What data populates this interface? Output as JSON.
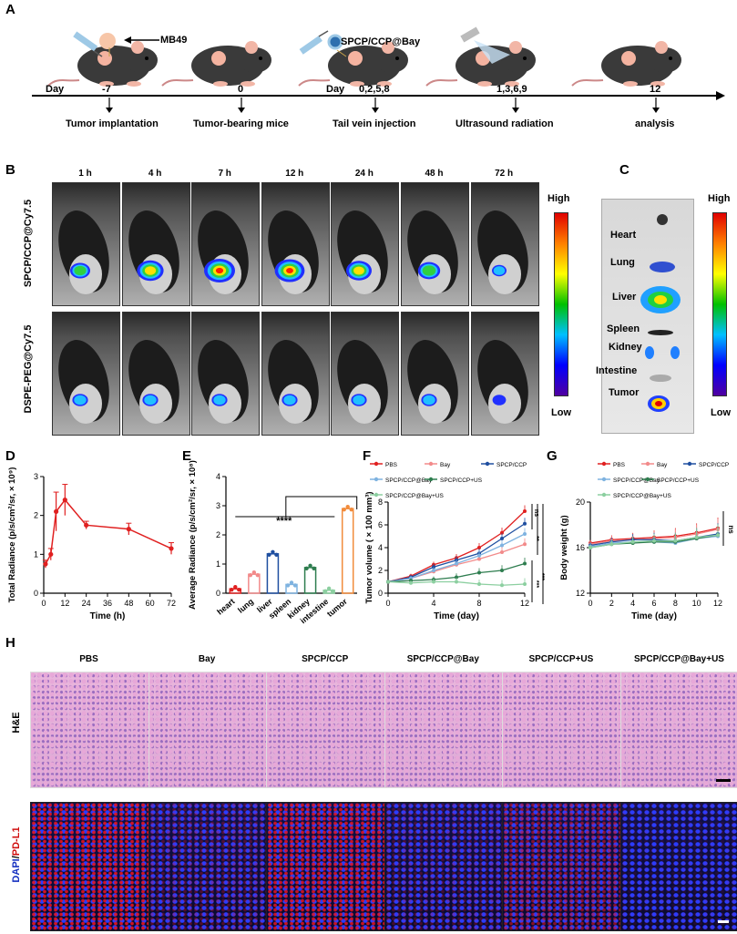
{
  "panel_labels": {
    "a": "A",
    "b": "B",
    "c": "C",
    "d": "D",
    "e": "E",
    "f": "F",
    "g": "G",
    "h": "H"
  },
  "timeline": {
    "day_word": "Day",
    "days": [
      "-7",
      "0",
      "0,2,5,8",
      "1,3,6,9",
      "12"
    ],
    "steps": [
      "Tumor implantation",
      "Tumor-bearing mice",
      "Tail vein injection",
      "Ultrasound radiation",
      "analysis"
    ],
    "annotations": [
      "MB49",
      "SPCP/CCP@Bay"
    ]
  },
  "imaging": {
    "times": [
      "1 h",
      "4 h",
      "7 h",
      "12 h",
      "24 h",
      "48 h",
      "72 h"
    ],
    "row_labels": [
      "SPCP/CCP@Cy7.5",
      "DSPE-PEG@Cy7.5"
    ],
    "scale_high": "High",
    "scale_low": "Low",
    "signal_strength_row1": [
      0.5,
      0.8,
      1.0,
      0.95,
      0.75,
      0.6,
      0.25
    ],
    "signal_strength_row2": [
      0.3,
      0.3,
      0.3,
      0.3,
      0.3,
      0.3,
      0.2
    ]
  },
  "organs": {
    "labels": [
      "Heart",
      "Lung",
      "Liver",
      "Spleen",
      "Kidney",
      "Intestine",
      "Tumor"
    ],
    "scale_high": "High",
    "scale_low": "Low"
  },
  "chart_data": [
    {
      "panel": "D",
      "type": "line",
      "xlabel": "Time (h)",
      "ylabel": "Total Radiance (p/s/cm²/sr, × 10⁹)",
      "xlim": [
        0,
        72
      ],
      "ylim": [
        0,
        3
      ],
      "xticks": [
        "0",
        "12",
        "24",
        "36",
        "48",
        "60",
        "72"
      ],
      "yticks": [
        "0",
        "1",
        "2",
        "3"
      ],
      "x": [
        1,
        4,
        7,
        12,
        24,
        48,
        72
      ],
      "y": [
        0.75,
        1.0,
        2.1,
        2.4,
        1.75,
        1.65,
        1.15
      ],
      "err": [
        0.1,
        0.15,
        0.5,
        0.4,
        0.1,
        0.15,
        0.15
      ],
      "color": "#e02020"
    },
    {
      "panel": "E",
      "type": "bar",
      "ylabel": "Average Radiance (p/s/cm²/sr, × 10⁸)",
      "ylim": [
        0,
        4
      ],
      "yticks": [
        "0",
        "1",
        "2",
        "3",
        "4"
      ],
      "categories": [
        "heart",
        "lung",
        "liver",
        "spleen",
        "kidney",
        "intestine",
        "tumor"
      ],
      "values": [
        0.15,
        0.65,
        1.35,
        0.3,
        0.88,
        0.1,
        2.9
      ],
      "colors": [
        "#e02020",
        "#f28a8a",
        "#1f4fa0",
        "#7fb3e0",
        "#2e7d4f",
        "#8ccfa0",
        "#f28c3c"
      ],
      "significance": "****"
    },
    {
      "panel": "F",
      "type": "line",
      "xlabel": "Time (day)",
      "ylabel": "Tumor volume ( × 100 mm³)",
      "xlim": [
        0,
        12
      ],
      "ylim": [
        0,
        8
      ],
      "xticks": [
        "0",
        "4",
        "8",
        "12"
      ],
      "yticks": [
        "0",
        "2",
        "4",
        "6",
        "8"
      ],
      "x": [
        0,
        2,
        4,
        6,
        8,
        10,
        12
      ],
      "series": [
        {
          "name": "PBS",
          "color": "#e02020",
          "values": [
            1.0,
            1.5,
            2.5,
            3.1,
            4.0,
            5.3,
            7.2
          ]
        },
        {
          "name": "Bay",
          "color": "#f28a8a",
          "values": [
            1.0,
            1.3,
            1.9,
            2.5,
            3.0,
            3.6,
            4.3
          ]
        },
        {
          "name": "SPCP/CCP",
          "color": "#1f4fa0",
          "values": [
            1.0,
            1.4,
            2.3,
            2.9,
            3.5,
            4.8,
            6.1
          ]
        },
        {
          "name": "SPCP/CCP@Bay",
          "color": "#7fb3e0",
          "values": [
            1.0,
            1.3,
            2.0,
            2.6,
            3.3,
            4.2,
            5.2
          ]
        },
        {
          "name": "SPCP/CCP+US",
          "color": "#2e7d4f",
          "values": [
            1.0,
            1.1,
            1.2,
            1.4,
            1.8,
            2.0,
            2.6
          ]
        },
        {
          "name": "SPCP/CCP@Bay+US",
          "color": "#8ccfa0",
          "values": [
            1.0,
            0.9,
            1.0,
            1.0,
            0.8,
            0.7,
            0.8
          ]
        }
      ],
      "significance": [
        "ns",
        "**",
        "***",
        "***"
      ]
    },
    {
      "panel": "G",
      "type": "line",
      "xlabel": "Time (day)",
      "ylabel": "Body weight (g)",
      "xlim": [
        0,
        12
      ],
      "ylim": [
        12,
        20
      ],
      "xticks": [
        "0",
        "2",
        "4",
        "6",
        "8",
        "10",
        "12"
      ],
      "yticks": [
        "12",
        "16",
        "20"
      ],
      "x": [
        0,
        2,
        4,
        6,
        8,
        10,
        12
      ],
      "series": [
        {
          "name": "PBS",
          "color": "#e02020",
          "values": [
            16.4,
            16.7,
            16.8,
            16.9,
            17.0,
            17.3,
            17.7
          ]
        },
        {
          "name": "Bay",
          "color": "#f28a8a",
          "values": [
            16.3,
            16.6,
            16.7,
            16.8,
            16.9,
            17.2,
            17.6
          ]
        },
        {
          "name": "SPCP/CCP",
          "color": "#1f4fa0",
          "values": [
            16.2,
            16.5,
            16.7,
            16.7,
            16.6,
            16.9,
            17.2
          ]
        },
        {
          "name": "SPCP/CCP@Bay",
          "color": "#7fb3e0",
          "values": [
            16.1,
            16.4,
            16.5,
            16.5,
            16.4,
            16.8,
            17.0
          ]
        },
        {
          "name": "SPCP/CCP+US",
          "color": "#2e7d4f",
          "values": [
            16.0,
            16.3,
            16.4,
            16.5,
            16.5,
            16.8,
            17.1
          ]
        },
        {
          "name": "SPCP/CCP@Bay+US",
          "color": "#8ccfa0",
          "values": [
            16.0,
            16.3,
            16.5,
            16.6,
            16.6,
            16.9,
            17.1
          ]
        }
      ],
      "significance": "ns"
    }
  ],
  "histology": {
    "groups": [
      "PBS",
      "Bay",
      "SPCP/CCP",
      "SPCP/CCP@Bay",
      "SPCP/CCP+US",
      "SPCP/CCP@Bay+US"
    ],
    "row1_label": "H&E",
    "row2_label_a": "DAPI",
    "row2_label_sep": "/",
    "row2_label_b": "PD-L1",
    "pdl1_intensity": [
      0.9,
      0.3,
      0.85,
      0.25,
      0.55,
      0.1
    ]
  }
}
